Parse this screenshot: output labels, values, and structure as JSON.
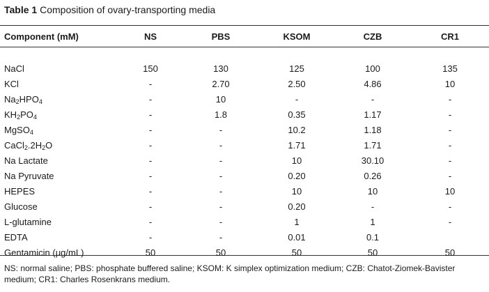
{
  "caption": {
    "label": "Table 1",
    "text": "Composition of ovary-transporting media"
  },
  "header": {
    "component": "Component (mM)",
    "media": [
      "NS",
      "PBS",
      "KSOM",
      "CZB",
      "CR1"
    ]
  },
  "rows": [
    {
      "component": "NaCl",
      "values": [
        "150",
        "130",
        "125",
        "100",
        "135"
      ]
    },
    {
      "component": "KCl",
      "values": [
        "-",
        "2.70",
        "2.50",
        "4.86",
        "10"
      ]
    },
    {
      "component": "Na2HPO4",
      "values": [
        "-",
        "10",
        "-",
        "-",
        "-"
      ]
    },
    {
      "component": "KH2PO4",
      "values": [
        "-",
        "1.8",
        "0.35",
        "1.17",
        "-"
      ]
    },
    {
      "component": "MgSO4",
      "values": [
        "-",
        "-",
        "10.2",
        "1.18",
        "-"
      ]
    },
    {
      "component": "CaCl2.2H2O",
      "values": [
        "-",
        "-",
        "1.71",
        "1.71",
        "-"
      ]
    },
    {
      "component": "Na Lactate",
      "values": [
        "-",
        "-",
        "10",
        "30.10",
        "-"
      ]
    },
    {
      "component": "Na Pyruvate",
      "values": [
        "-",
        "-",
        "0.20",
        "0.26",
        "-"
      ]
    },
    {
      "component": "HEPES",
      "values": [
        "-",
        "-",
        "10",
        "10",
        "10"
      ]
    },
    {
      "component": "Glucose",
      "values": [
        "-",
        "-",
        "0.20",
        "-",
        "-"
      ]
    },
    {
      "component": "L-glutamine",
      "values": [
        "-",
        "-",
        "1",
        "1",
        "-"
      ]
    },
    {
      "component": "EDTA",
      "values": [
        "-",
        "-",
        "0.01",
        "0.1",
        ""
      ]
    },
    {
      "component": "Gentamicin (μg/mL)",
      "values": [
        "50",
        "50",
        "50",
        "50",
        "50"
      ]
    }
  ],
  "footnote": "NS: normal saline; PBS: phosphate buffered saline; KSOM: K simplex optimization medium; CZB: Chatot-Ziomek-Bavister medium; CR1: Charles Rosenkrans medium."
}
